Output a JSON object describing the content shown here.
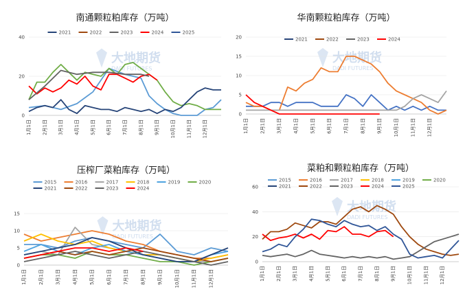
{
  "watermark": {
    "cn": "大地期货",
    "en": "DADI FUTURES"
  },
  "colors": {
    "2015": "#5b9bd5",
    "2016": "#ed7d31",
    "2017": "#a5a5a5",
    "2018": "#ffc000",
    "2019": "#4ea3e0",
    "2020": "#70ad47",
    "2021": "#264478",
    "2022": "#9e480e",
    "2023": "#636363",
    "2024": "#ff0000",
    "2025": "#2f5597"
  },
  "chart_data": [
    {
      "type": "line",
      "title": "南通颗粒粕库存（万吨）",
      "ylim": [
        0,
        40
      ],
      "yticks": [
        0,
        20,
        40
      ],
      "xticklabels": [
        "1月1日",
        "2月1日",
        "3月1日",
        "4月1日",
        "5月1日",
        "6月1日",
        "7月1日",
        "8月1日",
        "9月1日",
        "10月1日",
        "11月1日",
        "12月1日"
      ],
      "legend_order": [
        "2021",
        "2022",
        "2023",
        "2024",
        "2025"
      ],
      "legend_position": "top",
      "series": [
        {
          "name": "2021",
          "color": "#5b9bd5",
          "x": [
            0,
            1,
            2,
            3,
            4,
            5,
            6,
            7,
            7.5,
            8,
            8.5,
            9,
            9.5,
            10,
            10.5,
            11,
            11.5,
            12
          ],
          "values": [
            4,
            5,
            3,
            6,
            12,
            24,
            21,
            19,
            10,
            6,
            3,
            1,
            0,
            0,
            0,
            3,
            4,
            8
          ]
        },
        {
          "name": "2022",
          "color": "#70ad47",
          "x": [
            0,
            0.5,
            1,
            1.5,
            2,
            2.5,
            3,
            3.5,
            4,
            4.5,
            5,
            5.5,
            6,
            6.5,
            7,
            7.5,
            8,
            8.5,
            9,
            9.5,
            10,
            10.5,
            11,
            11.5,
            12
          ],
          "values": [
            8,
            17,
            17,
            22,
            26,
            22,
            18,
            22,
            21,
            20,
            24,
            21,
            26,
            27,
            24,
            21,
            18,
            12,
            7,
            5,
            6,
            5,
            3,
            3,
            3
          ]
        },
        {
          "name": "2023",
          "color": "#264478",
          "x": [
            0,
            0.5,
            1,
            1.5,
            2,
            2.5,
            3,
            3.5,
            4,
            4.5,
            5,
            5.5,
            6,
            6.5,
            7,
            7.5,
            8,
            8.5,
            9,
            9.5,
            10,
            10.5,
            11,
            11.5,
            12
          ],
          "values": [
            2,
            4,
            5,
            4,
            8,
            3,
            1,
            5,
            4,
            3,
            3,
            2,
            4,
            3,
            2,
            3,
            1,
            3,
            2,
            4,
            8,
            12,
            14,
            13,
            13
          ]
        },
        {
          "name": "2024",
          "color": "#ff0000",
          "x": [
            0,
            0.5,
            1,
            1.5,
            2,
            2.5,
            3,
            3.5,
            4,
            4.5,
            5,
            5.5,
            6,
            6.5,
            7,
            7.5,
            8
          ],
          "values": [
            15,
            11,
            14,
            12,
            14,
            18,
            16,
            20,
            15,
            13,
            21,
            21,
            19,
            17,
            20,
            21,
            18
          ]
        },
        {
          "name": "2025",
          "color": "#636363",
          "x": [
            0,
            1,
            2,
            3,
            4,
            5,
            6,
            7,
            7.5
          ],
          "values": [
            8,
            15,
            23,
            21,
            22,
            22,
            21,
            21,
            20
          ]
        }
      ]
    },
    {
      "type": "line",
      "title": "华南颗粒粕库存（万吨）",
      "ylim": [
        0,
        20
      ],
      "yticks": [
        0,
        5,
        10,
        15,
        20
      ],
      "xticklabels": [
        "1月1日",
        "2月1日",
        "3月1日",
        "4月1日",
        "5月1日",
        "6月1日",
        "7月1日",
        "8月1日",
        "9月1日",
        "10月1日",
        "11月1日",
        "12月1日"
      ],
      "legend_order": [
        "2021",
        "2022",
        "2023",
        "2024"
      ],
      "legend_position": "top",
      "series": [
        {
          "name": "2021",
          "color": "#4472c4",
          "x": [
            0,
            0.5,
            1,
            1.5,
            2,
            2.5,
            3,
            3.5,
            4,
            4.5,
            5,
            5.5,
            6,
            6.5,
            7,
            7.5,
            8,
            8.5,
            9,
            9.5,
            10,
            10.5,
            11,
            11.5,
            12
          ],
          "values": [
            2,
            2,
            2,
            3,
            3,
            2,
            3,
            3,
            3,
            2,
            2,
            2,
            5,
            4,
            2,
            5,
            3,
            1,
            2,
            1,
            2,
            1,
            2,
            1,
            1
          ]
        },
        {
          "name": "2022",
          "color": "#ed7d31",
          "x": [
            0,
            0.5,
            1,
            1.5,
            2,
            2.5,
            3,
            3.5,
            4,
            4.5,
            5,
            5.5,
            6,
            6.5,
            7,
            7.5,
            8,
            8.5,
            9,
            9.5,
            10,
            10.5,
            11,
            11.5,
            12
          ],
          "values": [
            3,
            2,
            2,
            1,
            1,
            7,
            6,
            8,
            9,
            12,
            11,
            11,
            15,
            15,
            14,
            13,
            11,
            8,
            6,
            5,
            4,
            3,
            1,
            0,
            1
          ]
        },
        {
          "name": "2023",
          "color": "#a5a5a5",
          "x": [
            0,
            1,
            2,
            3,
            4,
            5,
            6,
            7,
            8,
            9,
            9.5,
            10,
            10.5,
            11,
            11.5,
            12
          ],
          "values": [
            1,
            1,
            1,
            1,
            1,
            1,
            1,
            1,
            1,
            1,
            2,
            4,
            5,
            4,
            3,
            6
          ]
        },
        {
          "name": "2024",
          "color": "#ff0000",
          "x": [
            0,
            0.5,
            1,
            1.5,
            2,
            3,
            4,
            5,
            6,
            7,
            8
          ],
          "values": [
            5,
            3,
            2,
            1,
            0,
            0,
            0,
            0,
            0,
            0,
            0
          ]
        }
      ]
    },
    {
      "type": "line",
      "title": "压榨厂菜粕库存（万吨）",
      "ylim": [
        0,
        15
      ],
      "yticks": [
        0,
        5,
        10,
        15
      ],
      "xticklabels": [
        "1月1日",
        "2月1日",
        "3月1日",
        "4月1日",
        "5月1日",
        "6月1日",
        "7月1日",
        "8月1日",
        "9月1日",
        "10月1日",
        "11月1日",
        "12月1日"
      ],
      "legend_order": [
        "2015",
        "2016",
        "2017",
        "2018",
        "2019",
        "2020",
        "2021",
        "2022",
        "2023",
        "2024"
      ],
      "legend_position": "top",
      "series": [
        {
          "name": "2015",
          "color": "#5b9bd5",
          "x": [
            0,
            1,
            2,
            3,
            4,
            5,
            6,
            7,
            8,
            9,
            10,
            11,
            12
          ],
          "values": [
            6,
            6,
            5,
            7,
            8,
            7,
            6,
            5,
            9,
            4,
            3,
            5,
            4
          ]
        },
        {
          "name": "2016",
          "color": "#ed7d31",
          "x": [
            0,
            1,
            2,
            3,
            4,
            5,
            6,
            7,
            8,
            9,
            10,
            11,
            12
          ],
          "values": [
            9,
            7,
            8,
            9,
            10,
            9,
            7,
            6,
            4,
            3,
            2,
            2,
            3
          ]
        },
        {
          "name": "2017",
          "color": "#a5a5a5",
          "x": [
            0,
            1,
            2,
            3,
            4,
            5,
            6,
            7,
            8,
            9,
            10,
            11,
            12
          ],
          "values": [
            3,
            4,
            3,
            11,
            6,
            5,
            4,
            3,
            3,
            2,
            1,
            1,
            2
          ]
        },
        {
          "name": "2018",
          "color": "#ffc000",
          "x": [
            0,
            1,
            2,
            3,
            4,
            5,
            6,
            7,
            8,
            9,
            10,
            11,
            12
          ],
          "values": [
            7,
            9,
            7,
            6,
            7,
            5,
            4,
            3,
            3,
            2,
            1,
            2,
            3
          ]
        },
        {
          "name": "2019",
          "color": "#4ea3e0",
          "x": [
            0,
            1,
            2,
            3,
            4,
            5,
            6,
            7,
            8,
            9,
            10,
            11,
            12
          ],
          "values": [
            4,
            6,
            4,
            3,
            5,
            6,
            4,
            3,
            2,
            1,
            1,
            3,
            4
          ]
        },
        {
          "name": "2020",
          "color": "#70ad47",
          "x": [
            0,
            1,
            2,
            3,
            4,
            5,
            6,
            7,
            8,
            9,
            10,
            11,
            12
          ],
          "values": [
            2,
            3,
            3,
            2,
            4,
            3,
            3,
            2,
            1,
            1,
            0,
            1,
            2
          ]
        },
        {
          "name": "2021",
          "color": "#264478",
          "x": [
            0,
            1,
            2,
            3,
            4,
            5,
            6,
            7,
            8,
            9,
            10,
            11,
            12
          ],
          "values": [
            3,
            4,
            5,
            6,
            8,
            7,
            5,
            3,
            2,
            1,
            1,
            3,
            5
          ]
        },
        {
          "name": "2022",
          "color": "#9e480e",
          "x": [
            0,
            1,
            2,
            3,
            4,
            5,
            6,
            7,
            8,
            9,
            10,
            11,
            12
          ],
          "values": [
            2,
            3,
            4,
            3,
            4,
            3,
            4,
            5,
            4,
            3,
            2,
            1,
            2
          ]
        },
        {
          "name": "2023",
          "color": "#636363",
          "x": [
            0,
            1,
            2,
            3,
            4,
            5,
            6,
            7,
            8,
            9,
            10,
            11,
            12
          ],
          "values": [
            1,
            2,
            3,
            4,
            3,
            2,
            3,
            4,
            3,
            2,
            1,
            0,
            1
          ]
        },
        {
          "name": "2024",
          "color": "#ff0000",
          "x": [
            0,
            1,
            2,
            3,
            4,
            5,
            6,
            7
          ],
          "values": [
            2,
            3,
            4,
            5,
            5,
            4,
            5,
            4
          ]
        }
      ]
    },
    {
      "type": "line",
      "title": "菜粕和颗粒粕库存（万吨）",
      "ylim": [
        0,
        60
      ],
      "yticks": [
        0,
        20,
        40,
        60
      ],
      "xticklabels": [
        "1月1日",
        "2月1日",
        "3月1日",
        "4月1日",
        "5月1日",
        "6月1日",
        "7月1日",
        "8月1日",
        "9月1日",
        "10月1日",
        "11月1日",
        "12月1日"
      ],
      "legend_order": [
        "2015",
        "2016",
        "2017",
        "2018",
        "2019",
        "2020",
        "2021",
        "2022",
        "2023",
        "2024",
        "2025"
      ],
      "legend_position": "top",
      "series": [
        {
          "name": "2022",
          "color": "#9e480e",
          "x": [
            0,
            0.5,
            1,
            1.5,
            2,
            2.5,
            3,
            3.5,
            4,
            4.5,
            5,
            5.5,
            6,
            6.5,
            7,
            7.5,
            8,
            8.5,
            9,
            9.5,
            10,
            10.5,
            11,
            11.5,
            12
          ],
          "values": [
            18,
            24,
            24,
            26,
            31,
            29,
            27,
            32,
            32,
            30,
            36,
            42,
            44,
            40,
            45,
            42,
            38,
            28,
            20,
            14,
            10,
            8,
            6,
            5,
            6
          ]
        },
        {
          "name": "2024",
          "color": "#ff0000",
          "x": [
            0,
            0.5,
            1,
            1.5,
            2,
            2.5,
            3,
            3.5,
            4,
            4.5,
            5,
            5.5,
            6,
            6.5,
            7,
            7.5,
            8
          ],
          "values": [
            22,
            17,
            19,
            20,
            22,
            19,
            22,
            18,
            25,
            24,
            28,
            22,
            22,
            20,
            24,
            25,
            20
          ]
        },
        {
          "name": "2023",
          "color": "#636363",
          "x": [
            0,
            0.5,
            1,
            1.5,
            2,
            2.5,
            3,
            3.5,
            4,
            4.5,
            5,
            5.5,
            6,
            6.5,
            7,
            7.5,
            8,
            8.5,
            9,
            9.5,
            10,
            10.5,
            11,
            11.5,
            12
          ],
          "values": [
            5,
            4,
            5,
            6,
            4,
            6,
            9,
            6,
            5,
            4,
            3,
            4,
            3,
            4,
            3,
            4,
            2,
            3,
            4,
            8,
            12,
            16,
            18,
            20,
            22
          ]
        },
        {
          "name": "2025",
          "color": "#2f5597",
          "x": [
            0,
            0.5,
            1,
            1.5,
            2,
            2.5,
            3,
            3.5,
            4,
            4.5,
            5,
            5.5,
            6,
            6.5,
            7,
            7.5,
            8,
            8.5,
            9,
            9.5,
            10,
            10.5,
            11,
            11.5,
            12
          ],
          "values": [
            8,
            10,
            14,
            12,
            20,
            26,
            34,
            33,
            30,
            28,
            33,
            30,
            28,
            29,
            25,
            28,
            22,
            18,
            6,
            3,
            4,
            5,
            3,
            10,
            17
          ]
        }
      ]
    }
  ]
}
